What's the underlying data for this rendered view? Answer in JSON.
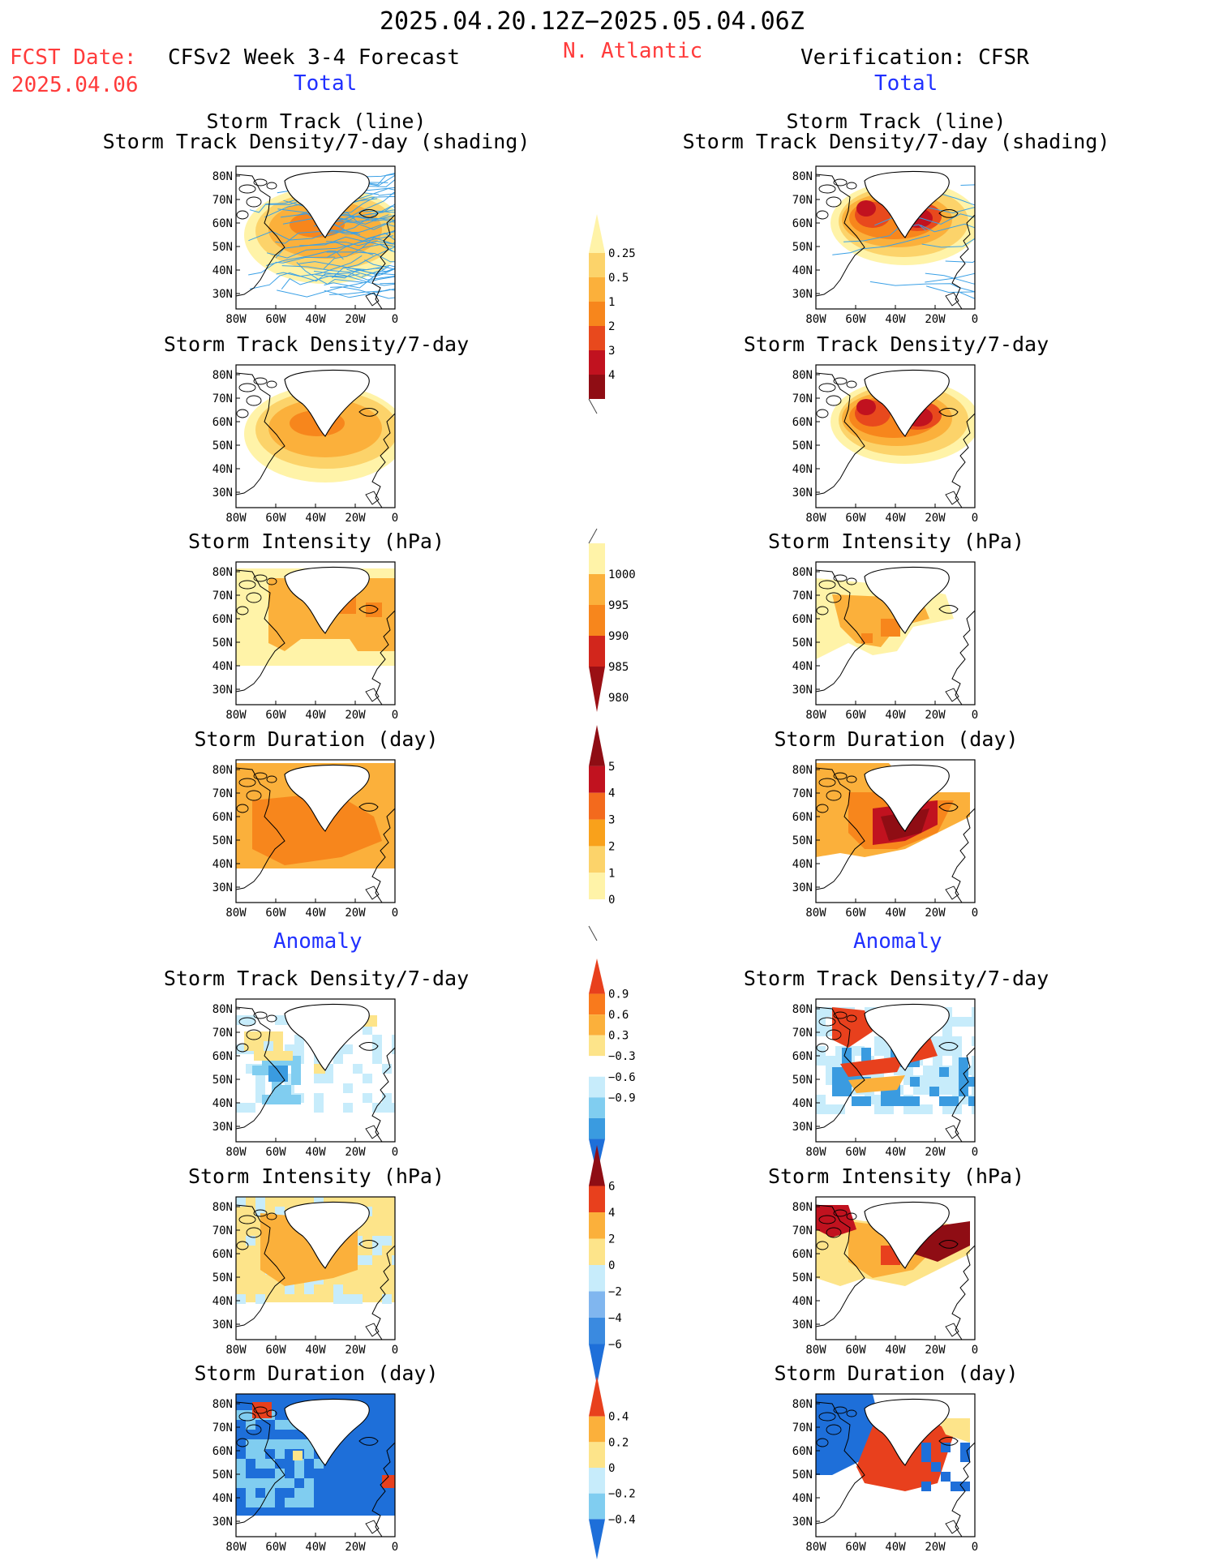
{
  "header": {
    "date_range": "2025.04.20.12Z−2025.05.04.06Z",
    "fcst_label": "FCST Date:",
    "fcst_date": "2025.04.06",
    "left_model": "CFSv2 Week 3-4 Forecast",
    "region": "N. Atlantic",
    "right_model": "Verification: CFSR",
    "total_left": "Total",
    "total_right": "Total",
    "anomaly_left": "Anomaly",
    "anomaly_right": "Anomaly"
  },
  "panel_titles": {
    "r0_line1": "Storm Track (line)",
    "r0_line2": "Storm Track Density/7-day (shading)",
    "r1": "Storm Track Density/7-day",
    "r2": "Storm Intensity (hPa)",
    "r3": "Storm Duration (day)",
    "r4": "Storm Track Density/7-day",
    "r5": "Storm Intensity (hPa)",
    "r6": "Storm Duration (day)"
  },
  "axes": {
    "x_ticks": [
      "80W",
      "60W",
      "40W",
      "20W",
      "0"
    ],
    "y_ticks": [
      "80N",
      "70N",
      "60N",
      "50N",
      "40N",
      "30N"
    ]
  },
  "chart_data": [
    {
      "type": "heatmap",
      "id": "density_tracks_total",
      "colorbar": [
        "0.25",
        "0.5",
        "1",
        "2",
        "3",
        "4"
      ],
      "colors": [
        "#fff3a8",
        "#fcd36a",
        "#fbb03b",
        "#f7861c",
        "#e8491d",
        "#c1121f",
        "#8f0d14"
      ]
    },
    {
      "type": "heatmap",
      "id": "intensity_total",
      "colorbar": [
        "1000",
        "995",
        "990",
        "985",
        "980"
      ],
      "colors": [
        "#fff3a8",
        "#fbb03b",
        "#f7861c",
        "#d2261c",
        "#9a0f14"
      ]
    },
    {
      "type": "heatmap",
      "id": "duration_total",
      "colorbar": [
        "5",
        "4",
        "3",
        "2",
        "1",
        "0"
      ],
      "colors": [
        "#8f0d14",
        "#c1121f",
        "#f36a1d",
        "#f9a11b",
        "#fcd36a",
        "#fff3a8",
        "#ffffff"
      ]
    },
    {
      "type": "heatmap",
      "id": "density_anomaly",
      "colorbar": [
        "0.9",
        "0.6",
        "0.3",
        "−0.3",
        "−0.6",
        "−0.9"
      ],
      "colors": [
        "#e8401d",
        "#f97a1c",
        "#fbb03b",
        "#fde48a",
        "#ffffff",
        "#c7ecfb",
        "#80cdf0",
        "#3a9be0",
        "#1e6fd9"
      ]
    },
    {
      "type": "heatmap",
      "id": "intensity_anomaly",
      "colorbar": [
        "6",
        "4",
        "2",
        "0",
        "−2",
        "−4",
        "−6"
      ],
      "colors": [
        "#8f0d14",
        "#e8401d",
        "#fbb03b",
        "#fde48a",
        "#c7ecfb",
        "#80b6ef",
        "#3a8ae0",
        "#1e6fd9"
      ]
    },
    {
      "type": "heatmap",
      "id": "duration_anomaly",
      "colorbar": [
        "0.4",
        "0.2",
        "0",
        "−0.2",
        "−0.4"
      ],
      "colors": [
        "#e8401d",
        "#fbb03b",
        "#fde48a",
        "#c7ecfb",
        "#80cdf0",
        "#1e6fd9"
      ]
    }
  ]
}
